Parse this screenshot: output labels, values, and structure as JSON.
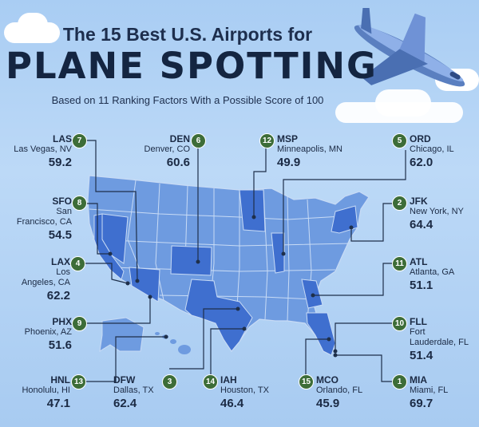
{
  "title_line1": "The 15 Best U.S. Airports for",
  "title_line2": "PLANE SPOTTING",
  "subtitle": "Based on 11 Ranking Factors With a Possible Score of 100",
  "airports": [
    {
      "rank": "7",
      "code": "LAS",
      "city": "Las Vegas, NV",
      "score": "59.2"
    },
    {
      "rank": "6",
      "code": "DEN",
      "city": "Denver, CO",
      "score": "60.6"
    },
    {
      "rank": "12",
      "code": "MSP",
      "city": "Minneapolis, MN",
      "score": "49.9"
    },
    {
      "rank": "5",
      "code": "ORD",
      "city": "Chicago, IL",
      "score": "62.0"
    },
    {
      "rank": "8",
      "code": "SFO",
      "city1": "San",
      "city2": "Francisco, CA",
      "score": "54.5"
    },
    {
      "rank": "2",
      "code": "JFK",
      "city": "New York, NY",
      "score": "64.4"
    },
    {
      "rank": "4",
      "code": "LAX",
      "city1": "Los",
      "city2": "Angeles, CA",
      "score": "62.2"
    },
    {
      "rank": "11",
      "code": "ATL",
      "city": "Atlanta, GA",
      "score": "51.1"
    },
    {
      "rank": "9",
      "code": "PHX",
      "city": "Phoenix, AZ",
      "score": "51.6"
    },
    {
      "rank": "10",
      "code": "FLL",
      "city1": "Fort",
      "city2": "Lauderdale, FL",
      "score": "51.4"
    },
    {
      "rank": "13",
      "code": "HNL",
      "city": "Honolulu, HI",
      "score": "47.1"
    },
    {
      "rank": "3",
      "code": "DFW",
      "city": "Dallas, TX",
      "score": "62.4"
    },
    {
      "rank": "14",
      "code": "IAH",
      "city": "Houston, TX",
      "score": "46.4"
    },
    {
      "rank": "15",
      "code": "MCO",
      "city": "Orlando, FL",
      "score": "45.9"
    },
    {
      "rank": "1",
      "code": "MIA",
      "city": "Miami, FL",
      "score": "69.7"
    }
  ],
  "colors": {
    "map_base": "#6e9be0",
    "map_highlight": "#3f6fcf",
    "badge": "#3d6d38",
    "line": "#1e2f4a"
  }
}
